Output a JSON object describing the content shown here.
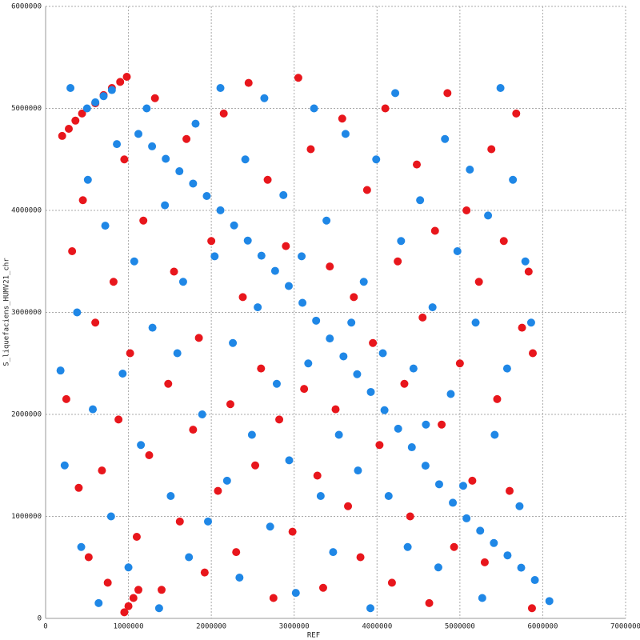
{
  "chart_data": {
    "type": "scatter",
    "x_label": "REF",
    "y_label": "S_liquefaciens_HUMV21_chr",
    "xlim": [
      0,
      7000000
    ],
    "ylim": [
      0,
      6000000
    ],
    "xticks": [
      0,
      1000000,
      2000000,
      3000000,
      4000000,
      5000000,
      6000000,
      7000000
    ],
    "yticks": [
      0,
      1000000,
      2000000,
      3000000,
      4000000,
      5000000,
      6000000
    ],
    "grid": true,
    "series": [
      {
        "color": "#e8161c",
        "x": [
          250000,
          320000,
          400000,
          450000,
          520000,
          600000,
          680000,
          750000,
          820000,
          880000,
          950000,
          1020000,
          1100000,
          1180000,
          1250000,
          1320000,
          1400000,
          1480000,
          1550000,
          1620000,
          1700000,
          1780000,
          1850000,
          1920000,
          2000000,
          2080000,
          2150000,
          2230000,
          2300000,
          2380000,
          2450000,
          2530000,
          2600000,
          2680000,
          2750000,
          2820000,
          2900000,
          2980000,
          3050000,
          3120000,
          3200000,
          3280000,
          3350000,
          3430000,
          3500000,
          3580000,
          3650000,
          3720000,
          3800000,
          3880000,
          3950000,
          4030000,
          4100000,
          4180000,
          4250000,
          4330000,
          4400000,
          4480000,
          4550000,
          4630000,
          4700000,
          4780000,
          4850000,
          4930000,
          5000000,
          5080000,
          5150000,
          5230000,
          5300000,
          5380000,
          5450000,
          5530000,
          5600000,
          5680000,
          5750000,
          5830000,
          5870000,
          5880000,
          950000,
          1000000,
          1060000,
          1120000,
          200000,
          280000,
          360000,
          440000,
          600000,
          700000,
          800000,
          900000,
          980000
        ],
        "values": [
          2150000,
          3600000,
          1280000,
          4100000,
          600000,
          2900000,
          1450000,
          350000,
          3300000,
          1950000,
          4500000,
          2600000,
          800000,
          3900000,
          1600000,
          5100000,
          280000,
          2300000,
          3400000,
          950000,
          4700000,
          1850000,
          2750000,
          450000,
          3700000,
          1250000,
          4950000,
          2100000,
          650000,
          3150000,
          5250000,
          1500000,
          2450000,
          4300000,
          200000,
          1950000,
          3650000,
          850000,
          5300000,
          2250000,
          4600000,
          1400000,
          300000,
          3450000,
          2050000,
          4900000,
          1100000,
          3150000,
          600000,
          4200000,
          2700000,
          1700000,
          5000000,
          350000,
          3500000,
          2300000,
          1000000,
          4450000,
          2950000,
          150000,
          3800000,
          1900000,
          5150000,
          700000,
          2500000,
          4000000,
          1350000,
          3300000,
          550000,
          4600000,
          2150000,
          3700000,
          1250000,
          4950000,
          2850000,
          3400000,
          100000,
          2600000,
          60000,
          120000,
          200000,
          280000,
          4730000,
          4800000,
          4880000,
          4950000,
          5050000,
          5130000,
          5200000,
          5260000,
          5310000
        ]
      },
      {
        "color": "#1f87e6",
        "x": [
          180000,
          230000,
          300000,
          380000,
          430000,
          510000,
          570000,
          640000,
          720000,
          790000,
          860000,
          930000,
          1000000,
          1070000,
          1150000,
          1220000,
          1290000,
          1370000,
          1440000,
          1510000,
          1590000,
          1660000,
          1730000,
          1810000,
          1890000,
          1960000,
          2040000,
          2110000,
          2190000,
          2260000,
          2340000,
          2410000,
          2490000,
          2560000,
          2640000,
          2710000,
          2790000,
          2870000,
          2940000,
          3020000,
          3090000,
          3170000,
          3240000,
          3320000,
          3390000,
          3470000,
          3540000,
          3620000,
          3690000,
          3770000,
          3840000,
          3920000,
          3990000,
          4070000,
          4140000,
          4220000,
          4290000,
          4370000,
          4440000,
          4520000,
          4590000,
          4670000,
          4740000,
          4820000,
          4890000,
          4970000,
          5040000,
          5120000,
          5190000,
          5270000,
          5340000,
          5420000,
          5490000,
          5570000,
          5640000,
          5720000,
          5790000,
          5860000,
          6080000,
          500000,
          600000,
          700000,
          800000,
          1120000,
          1285000,
          1450000,
          1615000,
          1780000,
          1945000,
          2110000,
          2275000,
          2440000,
          2605000,
          2770000,
          2935000,
          3100000,
          3265000,
          3430000,
          3595000,
          3760000,
          3925000,
          4090000,
          4255000,
          4420000,
          4585000,
          4750000,
          4915000,
          5080000,
          5245000,
          5410000,
          5575000,
          5740000,
          5905000
        ],
        "values": [
          2430000,
          1500000,
          5200000,
          3000000,
          700000,
          4300000,
          2050000,
          150000,
          3850000,
          1000000,
          4650000,
          2400000,
          500000,
          3500000,
          1700000,
          5000000,
          2850000,
          100000,
          4050000,
          1200000,
          2600000,
          3300000,
          600000,
          4850000,
          2000000,
          950000,
          3550000,
          5200000,
          1350000,
          2700000,
          400000,
          4500000,
          1800000,
          3050000,
          5100000,
          900000,
          2300000,
          4150000,
          1550000,
          250000,
          3550000,
          2500000,
          5000000,
          1200000,
          3900000,
          650000,
          1800000,
          4750000,
          2900000,
          1450000,
          3300000,
          100000,
          4500000,
          2600000,
          1200000,
          5150000,
          3700000,
          700000,
          2450000,
          4100000,
          1900000,
          3050000,
          500000,
          4700000,
          2200000,
          3600000,
          1300000,
          4400000,
          2900000,
          200000,
          3950000,
          1800000,
          5200000,
          2450000,
          4300000,
          1100000,
          3500000,
          2900000,
          170000,
          5000000,
          5060000,
          5120000,
          5180000,
          4750000,
          4628000,
          4506000,
          4384000,
          4263000,
          4141000,
          4001000,
          3853000,
          3704000,
          3556000,
          3407000,
          3259000,
          3094000,
          2919000,
          2744000,
          2569000,
          2394000,
          2220000,
          2041000,
          1860000,
          1678000,
          1497000,
          1315000,
          1134000,
          981000,
          860000,
          739000,
          618000,
          497000,
          376000
        ]
      }
    ]
  }
}
